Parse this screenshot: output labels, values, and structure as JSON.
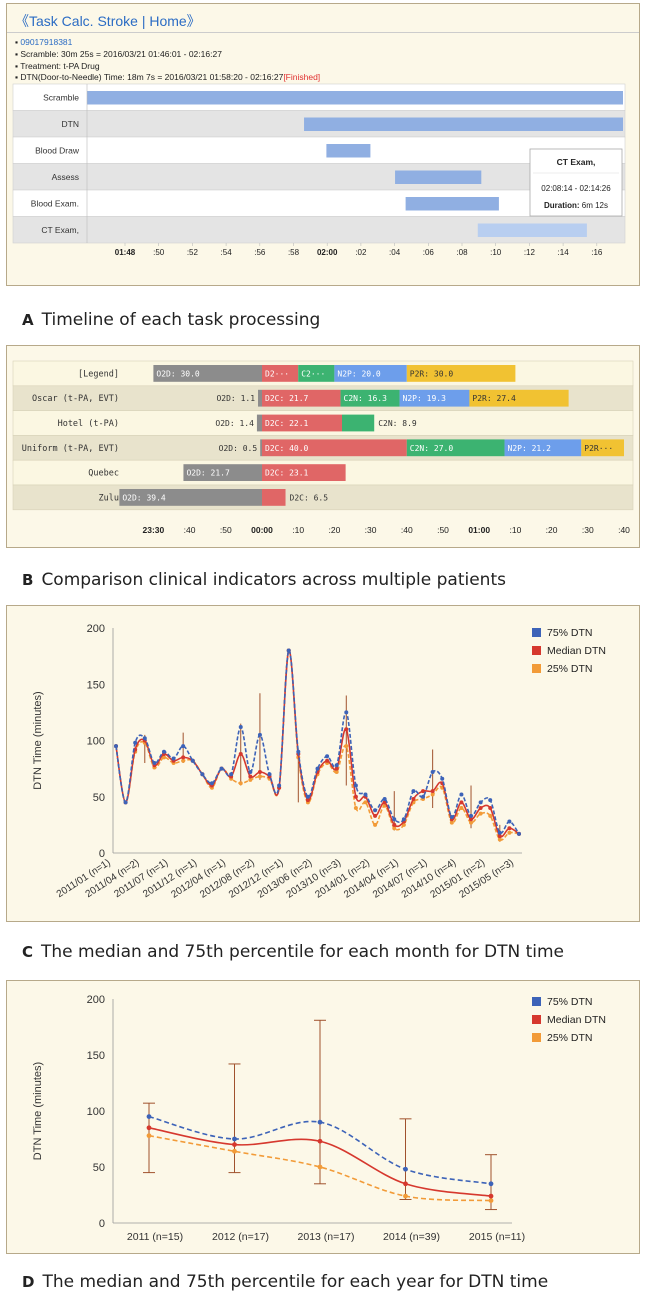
{
  "panelA": {
    "header": "《Task Calc. Stroke | Home》",
    "id": "09017918381",
    "lines": [
      "Scramble: 30m 25s = 2016/03/21 01:46:01 - 02:16:27",
      "Treatment: t-PA Drug",
      "DTN(Door-to-Needle) Time: 18m 7s = 2016/03/21 01:58:20 - 02:16:27"
    ],
    "finished": "[Finished]",
    "tasks": [
      "Scramble",
      "DTN",
      "Blood Draw",
      "Assess",
      "Blood Exam.",
      "CT Exam,"
    ],
    "ticks": [
      "01:48",
      ":50",
      ":52",
      ":54",
      ":56",
      ":58",
      "02:00",
      ":02",
      ":04",
      ":06",
      ":08",
      ":10",
      ":12",
      ":14",
      ":16"
    ],
    "tooltip": {
      "title": "CT Exam,",
      "range": "02:08:14 - 02:14:26",
      "duration_label": "Duration:",
      "duration": "6m 12s"
    },
    "caption_letter": "A",
    "caption": "Timeline of each task processing"
  },
  "panelB": {
    "rows": [
      "[Legend]",
      "Oscar (t-PA, EVT)",
      "Hotel (t-PA)",
      "Uniform (t-PA, EVT)",
      "Quebec",
      "Zulu"
    ],
    "labels": {
      "legend": [
        "O2D: 30.0",
        "D2···",
        "C2···",
        "N2P: 20.0",
        "P2R: 30.0"
      ],
      "oscar": [
        "O2D: 1.1",
        "D2C: 21.7",
        "C2N: 16.3",
        "N2P: 19.3",
        "P2R: 27.4"
      ],
      "hotel": [
        "O2D: 1.4",
        "D2C: 22.1",
        "C2N: 8.9"
      ],
      "uniform": [
        "O2D: 0.5",
        "D2C: 40.0",
        "C2N: 27.0",
        "N2P: 21.2",
        "P2R···"
      ],
      "quebec": [
        "O2D: 21.7",
        "D2C: 23.1"
      ],
      "zulu": [
        "O2D: 39.4",
        "D2C: 6.5"
      ]
    },
    "ticks": [
      "23:30",
      ":40",
      ":50",
      "00:00",
      ":10",
      ":20",
      ":30",
      ":40",
      ":50",
      "01:00",
      ":10",
      ":20",
      ":30",
      ":40"
    ],
    "colors": {
      "O2D": "#8c8c8c",
      "D2C": "#e06666",
      "C2N": "#3cb371",
      "N2P": "#6d9eeb",
      "P2R": "#f1c232"
    },
    "caption_letter": "B",
    "caption": "Comparison clinical indicators across multiple patients"
  },
  "chart_data": [
    {
      "type": "line",
      "title": "",
      "ylabel": "DTN Time (minutes)",
      "ylim": [
        0,
        200
      ],
      "yticks": [
        0,
        50,
        100,
        150,
        200
      ],
      "x_tick_labels": [
        "2011/01 (n=1)",
        "2011/04 (n=2)",
        "2011/07 (n=1)",
        "2011/12 (n=1)",
        "2012/04 (n=1)",
        "2012/08 (n=2)",
        "2012/12 (n=1)",
        "2013/06 (n=2)",
        "2013/10 (n=3)",
        "2014/01 (n=2)",
        "2014/04 (n=1)",
        "2014/07 (n=1)",
        "2014/10 (n=4)",
        "2015/01 (n=2)",
        "2015/05 (n=3)"
      ],
      "legend": [
        "75% DTN",
        "Median DTN",
        "25% DTN"
      ],
      "series": [
        {
          "name": "75% DTN",
          "color": "#3d63b8",
          "values": [
            95,
            45,
            98,
            102,
            80,
            90,
            84,
            95,
            82,
            70,
            62,
            75,
            70,
            112,
            72,
            105,
            70,
            60,
            180,
            90,
            50,
            75,
            86,
            78,
            125,
            60,
            52,
            38,
            48,
            30,
            30,
            55,
            50,
            72,
            66,
            32,
            52,
            33,
            45,
            47,
            18,
            28,
            17
          ]
        },
        {
          "name": "Median DTN",
          "color": "#d6382e",
          "values": [
            95,
            45,
            92,
            100,
            78,
            88,
            82,
            85,
            82,
            70,
            60,
            75,
            68,
            88,
            68,
            72,
            68,
            58,
            180,
            88,
            47,
            72,
            82,
            75,
            110,
            50,
            50,
            33,
            45,
            25,
            28,
            48,
            55,
            55,
            62,
            30,
            45,
            30,
            40,
            40,
            15,
            22,
            17
          ]
        },
        {
          "name": "25% DTN",
          "color": "#f29b38",
          "values": [
            95,
            45,
            90,
            98,
            76,
            85,
            80,
            82,
            82,
            70,
            58,
            75,
            66,
            62,
            65,
            68,
            66,
            58,
            180,
            85,
            45,
            70,
            80,
            72,
            95,
            40,
            45,
            25,
            42,
            22,
            25,
            45,
            48,
            52,
            58,
            27,
            40,
            27,
            35,
            33,
            12,
            18,
            17
          ]
        }
      ]
    },
    {
      "type": "line",
      "title": "",
      "ylabel": "DTN Time (minutes)",
      "ylim": [
        0,
        200
      ],
      "yticks": [
        0,
        50,
        100,
        150,
        200
      ],
      "categories": [
        "2011 (n=15)",
        "2012 (n=17)",
        "2013 (n=17)",
        "2014 (n=39)",
        "2015 (n=11)"
      ],
      "legend": [
        "75% DTN",
        "Median DTN",
        "25% DTN"
      ],
      "series": [
        {
          "name": "75% DTN",
          "color": "#3d63b8",
          "values": [
            95,
            75,
            90,
            48,
            35
          ]
        },
        {
          "name": "Median DTN",
          "color": "#d6382e",
          "values": [
            85,
            70,
            73,
            35,
            24
          ]
        },
        {
          "name": "25% DTN",
          "color": "#f29b38",
          "values": [
            78,
            64,
            50,
            24,
            20
          ]
        }
      ],
      "error_bars": [
        [
          45,
          107
        ],
        [
          45,
          142
        ],
        [
          35,
          181
        ],
        [
          21,
          93
        ],
        [
          12,
          61
        ]
      ]
    }
  ],
  "captions": {
    "C_letter": "C",
    "C": "The median and 75th percentile for each month for DTN time",
    "D_letter": "D",
    "D": "The median and 75th percentile for each year for DTN time"
  }
}
